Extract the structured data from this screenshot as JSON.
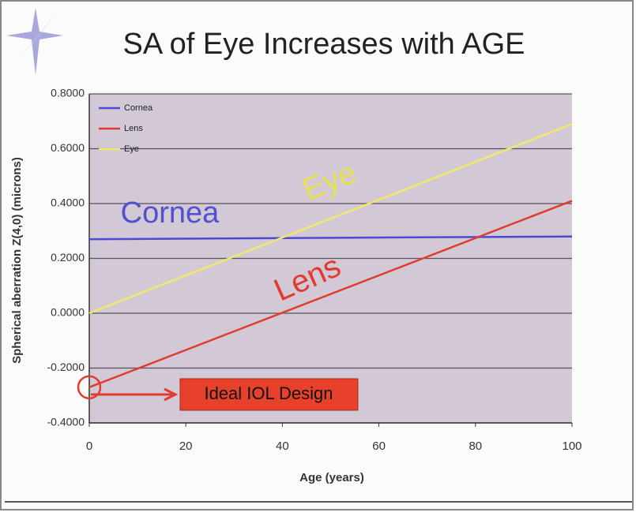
{
  "chart_data": {
    "type": "line",
    "title": "SA of Eye Increases with AGE",
    "x_label": "Age (years)",
    "y_label": "Spherical aberration Z(4,0) (microns)",
    "x": [
      0,
      100
    ],
    "series": [
      {
        "name": "Cornea",
        "color": "#4b4bd6",
        "values": [
          0.27,
          0.28
        ]
      },
      {
        "name": "Lens",
        "color": "#e23b2e",
        "values": [
          -0.27,
          0.41
        ]
      },
      {
        "name": "Eye",
        "color": "#f0e86a",
        "values": [
          0.0,
          0.69
        ]
      }
    ],
    "xlim": [
      0,
      100
    ],
    "xticks": [
      0,
      20,
      40,
      60,
      80,
      100
    ],
    "ylim": [
      -0.4,
      0.8
    ],
    "yticks": [
      {
        "value": -0.4,
        "label": "-0.4000"
      },
      {
        "value": -0.2,
        "label": "-0.2000"
      },
      {
        "value": 0,
        "label": "0.0000"
      },
      {
        "value": 0.2,
        "label": "0.2000"
      },
      {
        "value": 0.4,
        "label": "0.4000"
      },
      {
        "value": 0.6,
        "label": "0.6000"
      },
      {
        "value": 0.8,
        "label": "0.8000"
      }
    ],
    "grid": true,
    "legend": "top-left",
    "annotations": [
      "Cornea",
      "Eye",
      "Lens",
      "Ideal IOL Design"
    ]
  }
}
